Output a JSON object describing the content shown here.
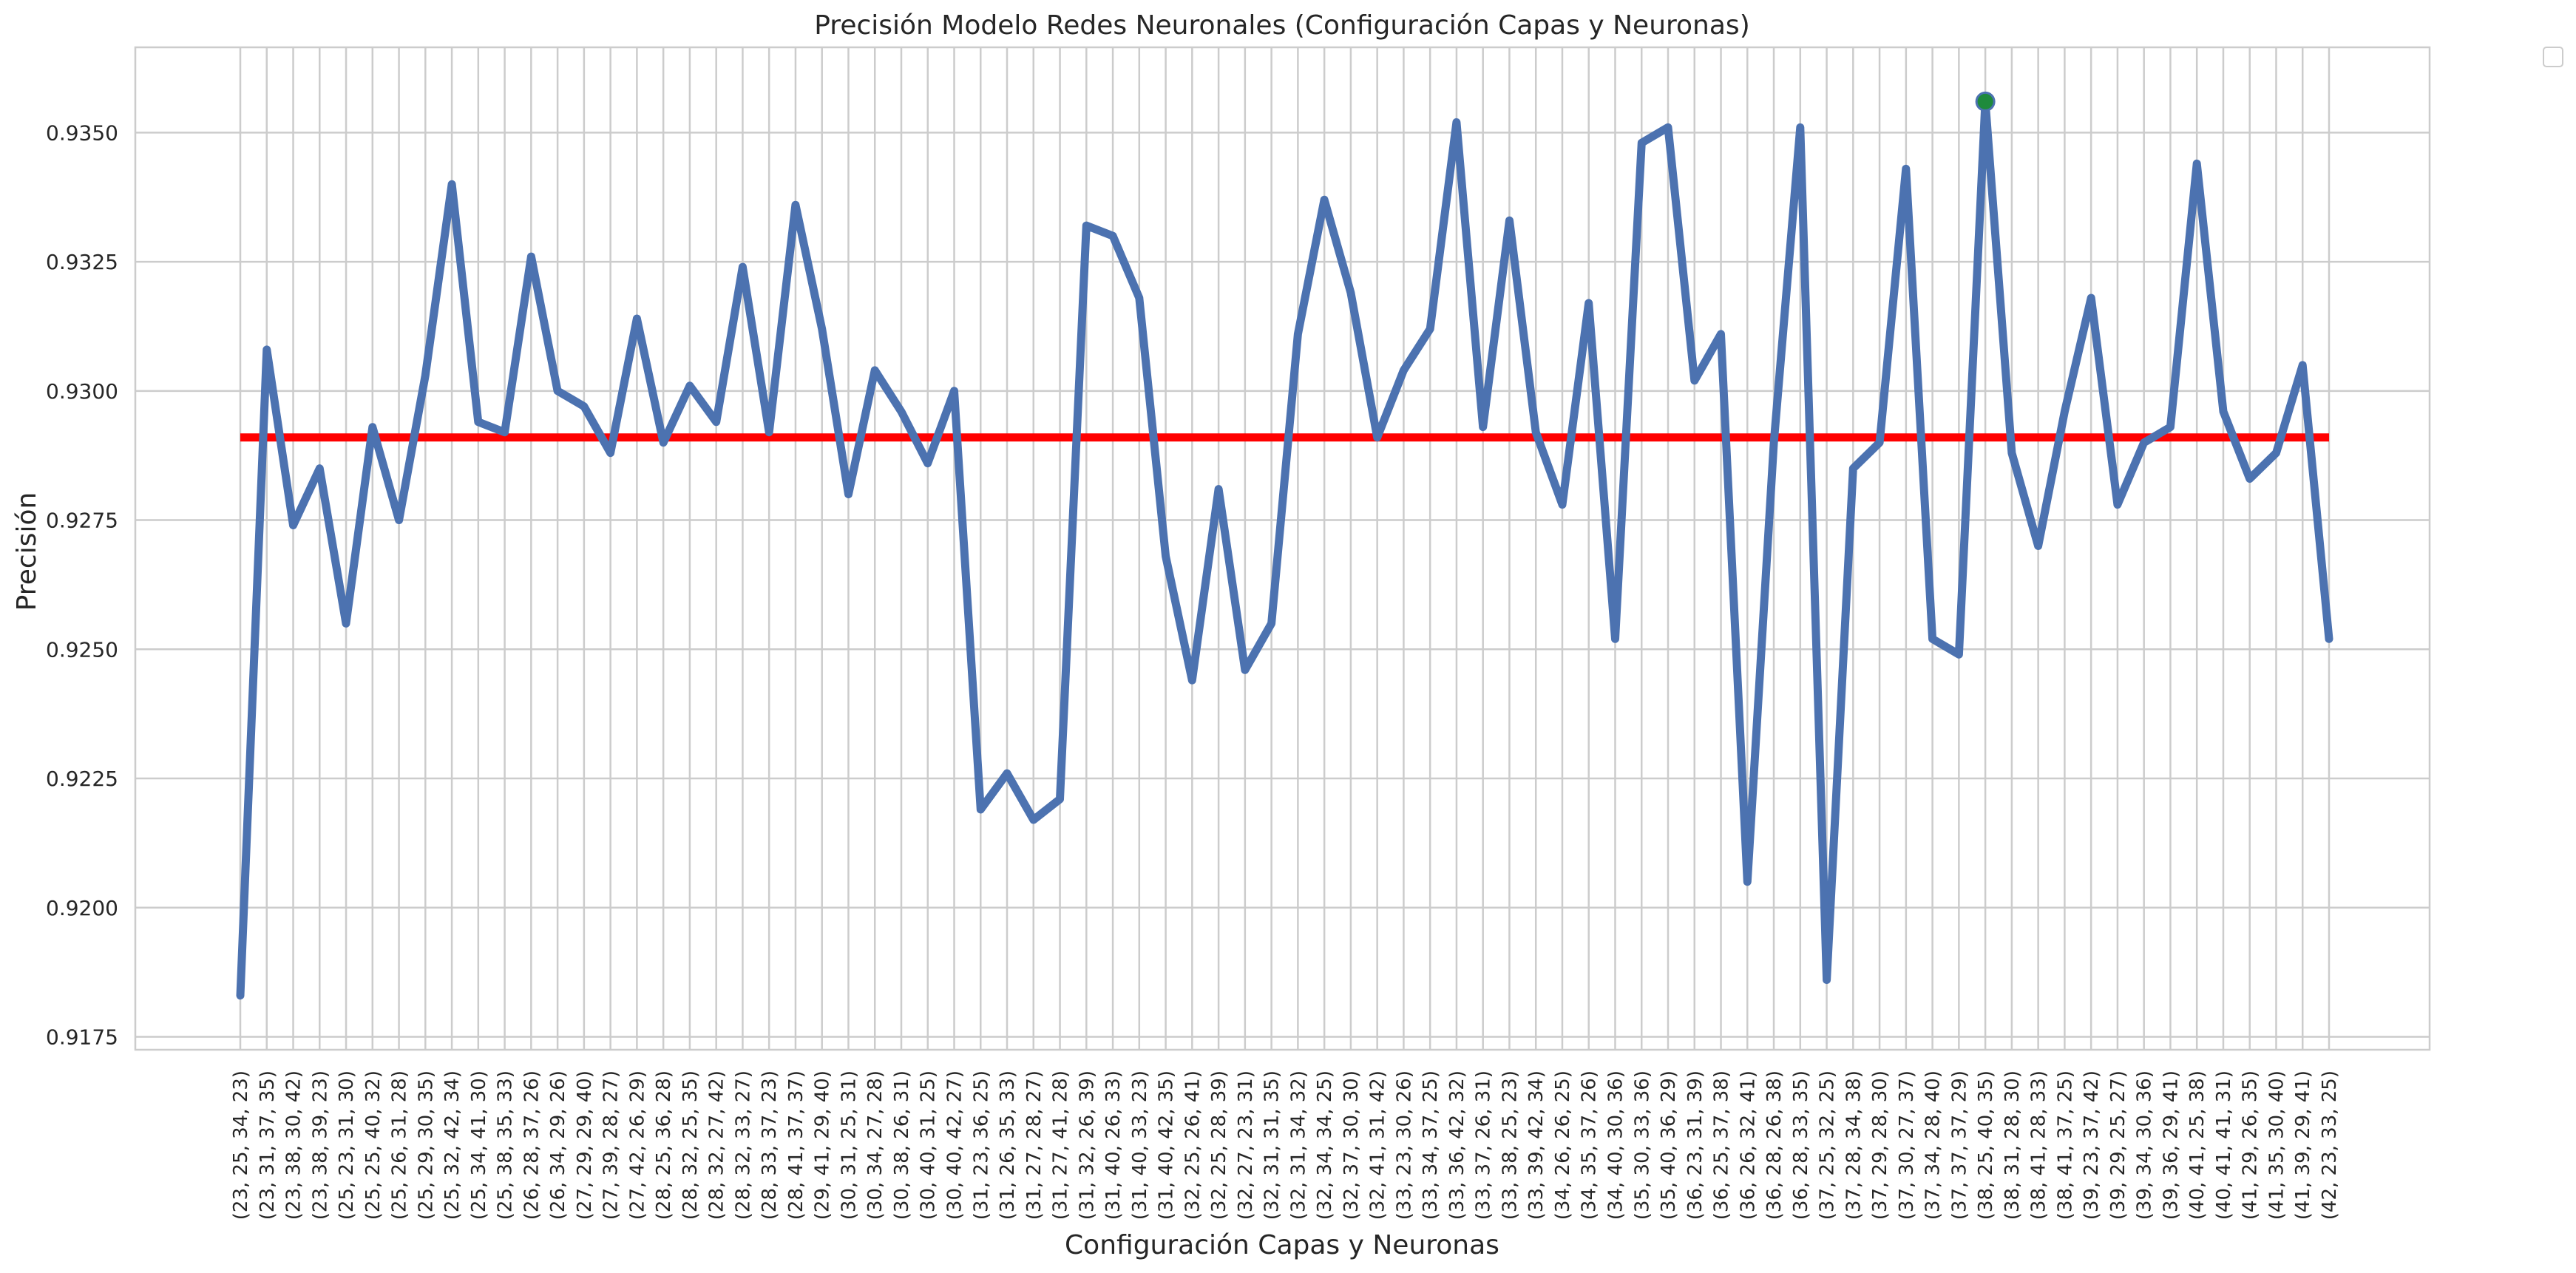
{
  "chart_data": {
    "type": "line",
    "title": "Precisión Modelo Redes Neuronales (Configuración Capas y Neuronas)",
    "xlabel": "Configuración Capas y Neuronas",
    "ylabel": "Precisión",
    "ylim": [
      0.91725,
      0.93665
    ],
    "yticks": [
      0.9175,
      0.92,
      0.9225,
      0.925,
      0.9275,
      0.93,
      0.9325,
      0.935
    ],
    "ytick_labels": [
      "0.9175",
      "0.9200",
      "0.9225",
      "0.9250",
      "0.9275",
      "0.9300",
      "0.9325",
      "0.9350"
    ],
    "grid": true,
    "legend": "top-right (empty)",
    "categories": [
      "(23, 25, 34, 23)",
      "(23, 31, 37, 35)",
      "(23, 38, 30, 42)",
      "(23, 38, 39, 23)",
      "(25, 23, 31, 30)",
      "(25, 25, 40, 32)",
      "(25, 26, 31, 28)",
      "(25, 29, 30, 35)",
      "(25, 32, 42, 34)",
      "(25, 34, 41, 30)",
      "(25, 38, 35, 33)",
      "(26, 28, 37, 26)",
      "(26, 34, 29, 26)",
      "(27, 29, 29, 40)",
      "(27, 39, 28, 27)",
      "(27, 42, 26, 29)",
      "(28, 25, 36, 28)",
      "(28, 32, 25, 35)",
      "(28, 32, 27, 42)",
      "(28, 32, 33, 27)",
      "(28, 33, 37, 23)",
      "(28, 41, 37, 37)",
      "(29, 41, 29, 40)",
      "(30, 31, 25, 31)",
      "(30, 34, 27, 28)",
      "(30, 38, 26, 31)",
      "(30, 40, 31, 25)",
      "(30, 40, 42, 27)",
      "(31, 23, 36, 25)",
      "(31, 26, 35, 33)",
      "(31, 27, 28, 27)",
      "(31, 27, 41, 28)",
      "(31, 32, 26, 39)",
      "(31, 40, 26, 33)",
      "(31, 40, 33, 23)",
      "(31, 40, 42, 35)",
      "(32, 25, 26, 41)",
      "(32, 25, 28, 39)",
      "(32, 27, 23, 31)",
      "(32, 31, 31, 35)",
      "(32, 31, 34, 32)",
      "(32, 34, 34, 25)",
      "(32, 37, 30, 30)",
      "(32, 41, 31, 42)",
      "(33, 23, 30, 26)",
      "(33, 34, 37, 25)",
      "(33, 36, 42, 32)",
      "(33, 37, 26, 31)",
      "(33, 38, 25, 23)",
      "(33, 39, 42, 34)",
      "(34, 26, 26, 25)",
      "(34, 35, 37, 26)",
      "(34, 40, 30, 36)",
      "(35, 30, 33, 36)",
      "(35, 40, 36, 29)",
      "(36, 23, 31, 39)",
      "(36, 25, 37, 38)",
      "(36, 26, 32, 41)",
      "(36, 28, 26, 38)",
      "(36, 28, 33, 35)",
      "(37, 25, 32, 25)",
      "(37, 28, 34, 38)",
      "(37, 29, 28, 30)",
      "(37, 30, 27, 37)",
      "(37, 34, 28, 40)",
      "(37, 37, 37, 29)",
      "(38, 25, 40, 35)",
      "(38, 31, 28, 30)",
      "(38, 41, 28, 33)",
      "(38, 41, 37, 25)",
      "(39, 23, 37, 42)",
      "(39, 29, 25, 27)",
      "(39, 34, 30, 36)",
      "(39, 36, 29, 41)",
      "(40, 41, 25, 38)",
      "(40, 41, 41, 31)",
      "(41, 29, 26, 35)",
      "(41, 35, 30, 40)",
      "(41, 39, 29, 41)",
      "(42, 23, 33, 25)"
    ],
    "series": [
      {
        "type": "line",
        "color": "#4c72b0",
        "values": [
          0.9183,
          0.9308,
          0.9274,
          0.9285,
          0.9255,
          0.9293,
          0.9275,
          0.9303,
          0.934,
          0.9294,
          0.9292,
          0.9326,
          0.93,
          0.9297,
          0.9288,
          0.9314,
          0.929,
          0.9301,
          0.9294,
          0.9324,
          0.9292,
          0.9336,
          0.9312,
          0.928,
          0.9304,
          0.9296,
          0.9286,
          0.93,
          0.9219,
          0.9226,
          0.9217,
          0.9221,
          0.9332,
          0.933,
          0.9318,
          0.9268,
          0.9244,
          0.9281,
          0.9246,
          0.9255,
          0.9311,
          0.9337,
          0.9319,
          0.9291,
          0.9304,
          0.9312,
          0.9352,
          0.9293,
          0.9333,
          0.9292,
          0.9278,
          0.9317,
          0.9252,
          0.9348,
          0.9351,
          0.9302,
          0.9311,
          0.9205,
          0.929,
          0.9351,
          0.9186,
          0.9285,
          0.929,
          0.9343,
          0.9252,
          0.9249,
          0.9356,
          0.9288,
          0.927,
          0.9296,
          0.9318,
          0.9278,
          0.929,
          0.9293,
          0.9344,
          0.9296,
          0.9283,
          0.9288,
          0.9305,
          0.9252
        ]
      },
      {
        "type": "hline",
        "color": "#ff0000",
        "value": 0.9291
      }
    ],
    "highlight_point": {
      "category_index": 66,
      "value": 0.9356,
      "color": "#1e8a3c"
    }
  }
}
